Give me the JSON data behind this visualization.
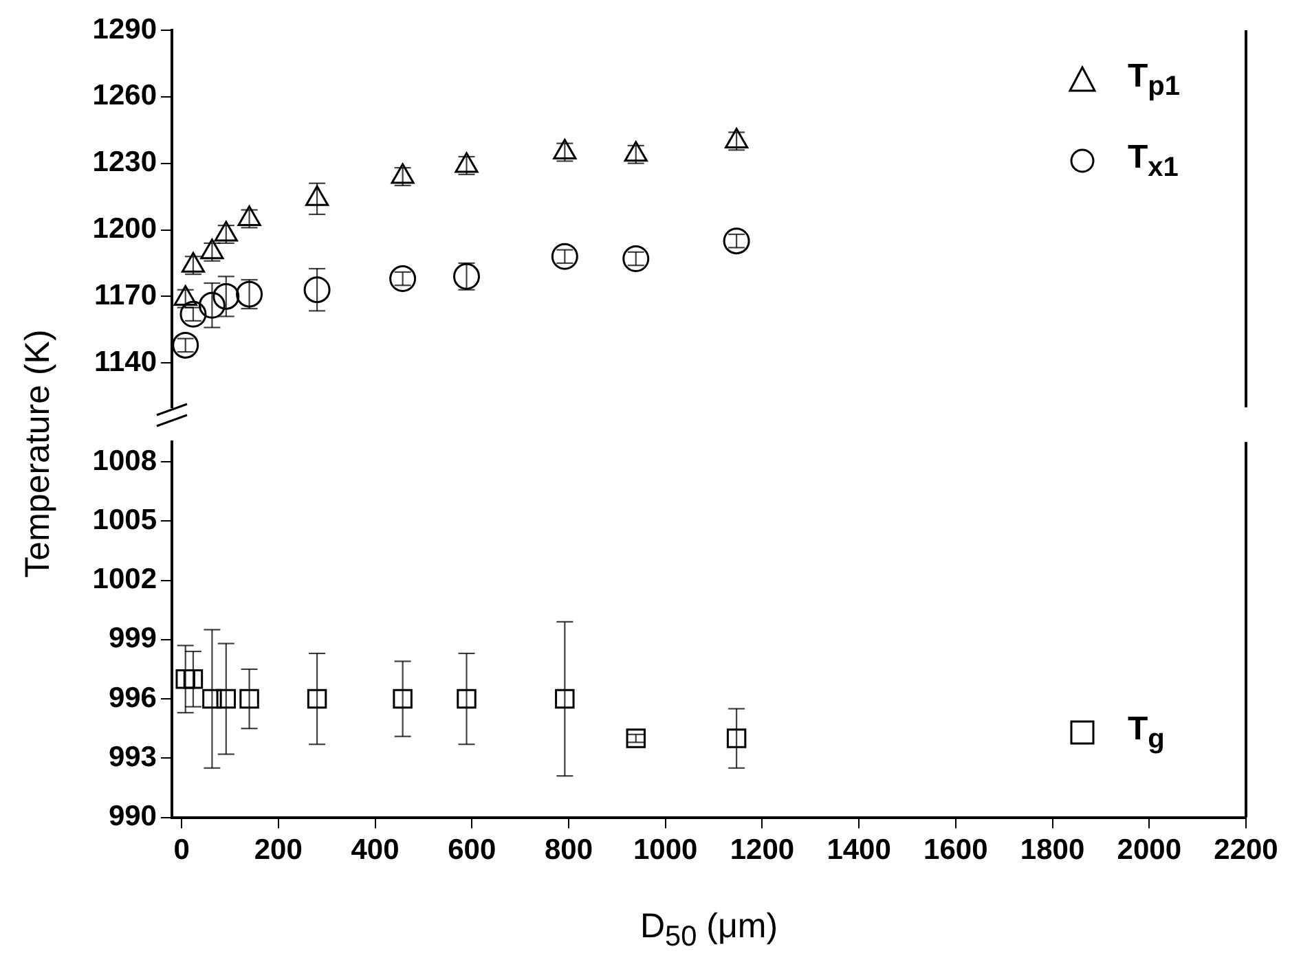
{
  "chart_data": [
    {
      "type": "scatter",
      "ylabel": "Temperature (K)",
      "x": [
        8,
        24,
        63,
        92,
        140,
        280,
        457,
        589,
        792,
        939,
        1147
      ],
      "xlim": [
        -20,
        2200
      ],
      "xticks": [
        0,
        200,
        400,
        600,
        800,
        1000,
        1200,
        1400,
        1600,
        1800,
        2000,
        2200
      ],
      "ylim": [
        1120,
        1290
      ],
      "yticks": [
        1140,
        1170,
        1200,
        1230,
        1260,
        1290
      ],
      "tick_labels": "y",
      "legend": "top right",
      "series": [
        {
          "name": "T$_{p1}$",
          "color": "#000000",
          "marker": "triangle",
          "values": [
            1169,
            1184,
            1190,
            1198,
            1205,
            1214,
            1224,
            1229,
            1235,
            1234,
            1240
          ],
          "errors": [
            4,
            4,
            4,
            4,
            4,
            7,
            4,
            4,
            4,
            4,
            4
          ]
        },
        {
          "name": "T$_{x1}$",
          "color": "#000000",
          "marker": "circle",
          "values": [
            1148,
            1162,
            1166,
            1170,
            1171,
            1173,
            1178,
            1179,
            1188,
            1187,
            1195
          ],
          "errors": [
            3,
            3,
            10,
            9,
            6.5,
            9.5,
            3,
            6,
            3,
            3,
            3
          ]
        }
      ]
    },
    {
      "type": "scatter",
      "xlabel": "D$_{50}$ (μm)",
      "x": [
        8,
        24,
        63,
        92,
        140,
        280,
        457,
        589,
        792,
        939,
        1147
      ],
      "xlim": [
        -20,
        2200
      ],
      "xticks": [
        0,
        200,
        400,
        600,
        800,
        1000,
        1200,
        1400,
        1600,
        1800,
        2000,
        2200
      ],
      "ylim": [
        990,
        1009
      ],
      "yticks": [
        990,
        993,
        996,
        999,
        1002,
        1005,
        1008
      ],
      "legend": "bottom right",
      "series": [
        {
          "name": "T$_{g}$",
          "color": "#000000",
          "marker": "square",
          "values": [
            997,
            997,
            996,
            996,
            996,
            996,
            996,
            996,
            996,
            994,
            994
          ],
          "errors": [
            1.7,
            1.4,
            3.5,
            2.8,
            1.5,
            2.3,
            1.9,
            2.3,
            3.9,
            0.2,
            1.5
          ]
        }
      ]
    }
  ]
}
